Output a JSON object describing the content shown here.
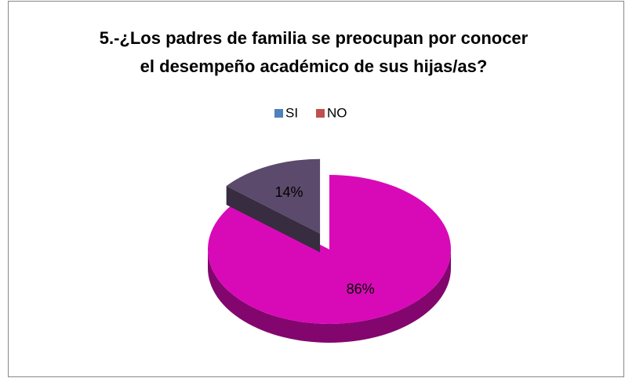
{
  "chart_data": {
    "type": "pie",
    "title": [
      "5.-¿Los padres de familia se preocupan por conocer",
      "el desempeño académico de sus hijas/as?"
    ],
    "categories": [
      "SI",
      "NO"
    ],
    "values": [
      86,
      14
    ],
    "value_labels": [
      "86%",
      "14%"
    ],
    "colors": [
      "#d80ab8",
      "#5b4a6b"
    ],
    "legend_colors": [
      "#4f81bd",
      "#c0504d"
    ]
  }
}
